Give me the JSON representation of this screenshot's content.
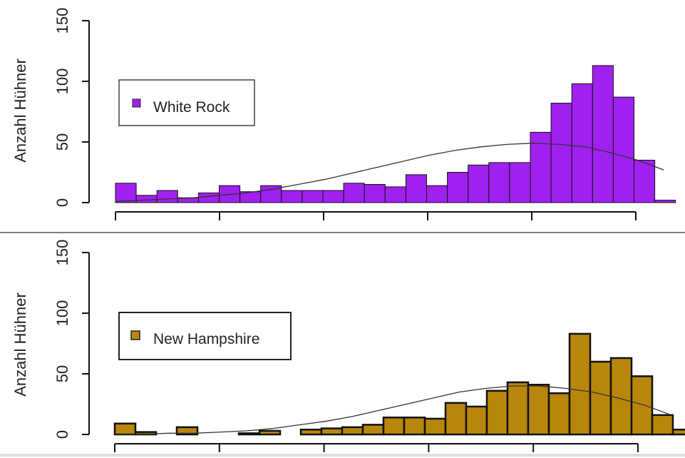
{
  "chart_data": [
    {
      "type": "bar",
      "ylabel": "Anzahl Hühner",
      "ylim": [
        0,
        150
      ],
      "yticks": [
        "0",
        "50",
        "100",
        "150"
      ],
      "xticks_count": 6,
      "legend": {
        "label": "White Rock",
        "color": "#a020f0"
      },
      "bar_color": "#a020f0",
      "values": [
        16,
        6,
        10,
        4,
        8,
        14,
        9,
        14,
        10,
        10,
        10,
        16,
        15,
        13,
        23,
        14,
        25,
        31,
        33,
        33,
        58,
        82,
        98,
        113,
        87,
        35,
        2
      ],
      "density_curve": [
        1,
        2,
        3,
        4,
        6,
        8,
        11,
        15,
        19,
        24,
        29,
        34,
        39,
        43,
        46,
        48,
        49,
        48,
        46,
        41,
        35,
        27
      ],
      "density_color": "#333333",
      "legend_placement": "left"
    },
    {
      "type": "bar",
      "ylabel": "Anzahl Hühner",
      "ylim": [
        0,
        150
      ],
      "yticks": [
        "0",
        "50",
        "100",
        "150"
      ],
      "xticks_count": 6,
      "legend": {
        "label": "New Hampshire",
        "color": "#b8860b"
      },
      "bar_color": "#b8860b",
      "values": [
        9,
        2,
        0,
        6,
        0,
        0,
        1,
        3,
        0,
        4,
        5,
        6,
        8,
        14,
        14,
        13,
        26,
        23,
        36,
        43,
        41,
        34,
        83,
        60,
        63,
        48,
        16,
        4
      ],
      "density_curve": [
        0,
        0,
        1,
        1,
        2,
        3,
        5,
        8,
        11,
        15,
        20,
        25,
        30,
        35,
        38,
        40,
        40,
        38,
        35,
        30,
        24,
        16
      ],
      "density_color": "#333333",
      "legend_placement": "left"
    }
  ]
}
